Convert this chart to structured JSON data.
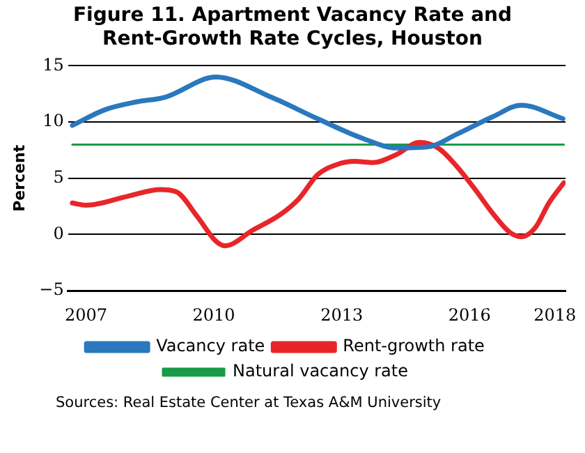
{
  "chart_data": {
    "type": "line",
    "title": "Figure 11. Apartment Vacancy Rate and Rent-Growth Rate Cycles, Houston",
    "ylabel": "Percent",
    "annotations": [
      "Sources: Real Estate Center at Texas A&M University"
    ],
    "xlim": [
      2006.58,
      2018.25
    ],
    "xticks": [
      2007,
      2010,
      2013,
      2016,
      2018
    ],
    "ylim": [
      -5,
      15
    ],
    "yticks": [
      -5,
      0,
      5,
      10,
      15
    ],
    "grid": "y",
    "legend": "bottom",
    "series": [
      {
        "name": "Vacancy rate",
        "color": "#2a78bd",
        "x": [
          2006.68,
          2007.45,
          2008.2,
          2008.85,
          2010.05,
          2011.35,
          2012.43,
          2013.52,
          2014.28,
          2015.04,
          2015.69,
          2016.56,
          2017.21,
          2018.19
        ],
        "values": [
          9.7,
          11.1,
          11.8,
          12.2,
          14.0,
          12.2,
          10.3,
          8.5,
          7.7,
          7.8,
          8.9,
          10.5,
          11.5,
          10.3
        ]
      },
      {
        "name": "Rent-growth rate",
        "color": "#e8262a",
        "x": [
          2006.68,
          2007.0,
          2007.98,
          2008.74,
          2009.12,
          2009.61,
          2010.05,
          2010.26,
          2010.92,
          2011.57,
          2012.0,
          2012.43,
          2012.87,
          2013.3,
          2013.74,
          2014.28,
          2014.82,
          2015.26,
          2015.69,
          2016.13,
          2016.56,
          2016.94,
          2017.21,
          2017.54,
          2017.86,
          2018.21
        ],
        "values": [
          2.8,
          2.6,
          3.4,
          4.0,
          3.8,
          1.6,
          -0.6,
          -1.0,
          0.4,
          1.8,
          3.2,
          5.3,
          6.2,
          6.5,
          6.4,
          7.1,
          8.2,
          7.7,
          6.1,
          4.0,
          1.8,
          0.2,
          -0.2,
          0.6,
          2.8,
          4.6
        ]
      },
      {
        "name": "Natural vacancy rate",
        "color": "#1a9a4a",
        "x": [
          2006.68,
          2018.21
        ],
        "values": [
          8.0,
          8.0
        ]
      }
    ]
  }
}
